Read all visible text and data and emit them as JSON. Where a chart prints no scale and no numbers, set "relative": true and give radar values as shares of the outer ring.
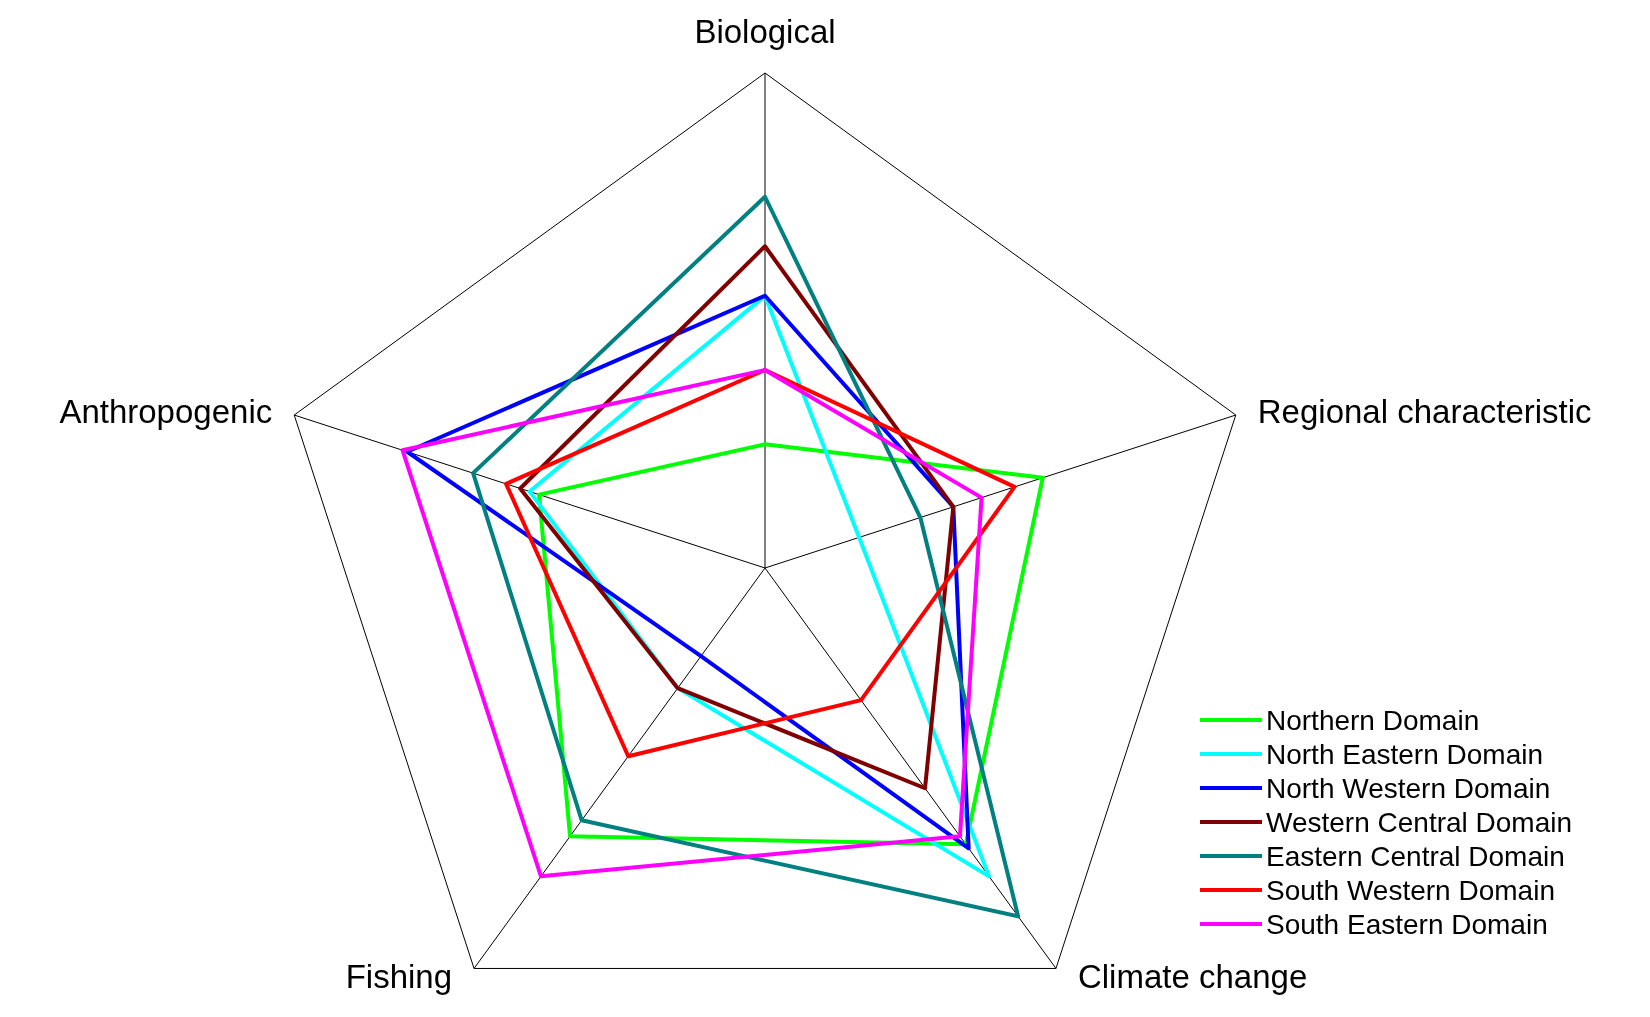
{
  "chart_data": {
    "type": "radar",
    "relative": true,
    "categories": [
      "Biological",
      "Regional characteristic",
      "Climate change",
      "Fishing",
      "Anthropogenic"
    ],
    "legend": "bottom right",
    "series": [
      {
        "name": "Northern Domain",
        "color": "#00ff00",
        "values": [
          0.25,
          0.59,
          0.69,
          0.67,
          0.48
        ]
      },
      {
        "name": "North Eastern Domain",
        "color": "#00ffff",
        "values": [
          0.55,
          0.2,
          0.77,
          0.3,
          0.5
        ]
      },
      {
        "name": "North Western Domain",
        "color": "#0000ff",
        "values": [
          0.55,
          0.4,
          0.7,
          0.22,
          0.76
        ]
      },
      {
        "name": "Western Central Domain",
        "color": "#800000",
        "values": [
          0.65,
          0.4,
          0.55,
          0.3,
          0.52
        ]
      },
      {
        "name": "Eastern Central Domain",
        "color": "#008080",
        "values": [
          0.75,
          0.33,
          0.87,
          0.63,
          0.62
        ]
      },
      {
        "name": "South Western Domain",
        "color": "#ff0000",
        "values": [
          0.4,
          0.53,
          0.33,
          0.47,
          0.55
        ]
      },
      {
        "name": "South Eastern Domain",
        "color": "#ff00ff",
        "values": [
          0.4,
          0.46,
          0.67,
          0.77,
          0.77
        ]
      }
    ]
  }
}
